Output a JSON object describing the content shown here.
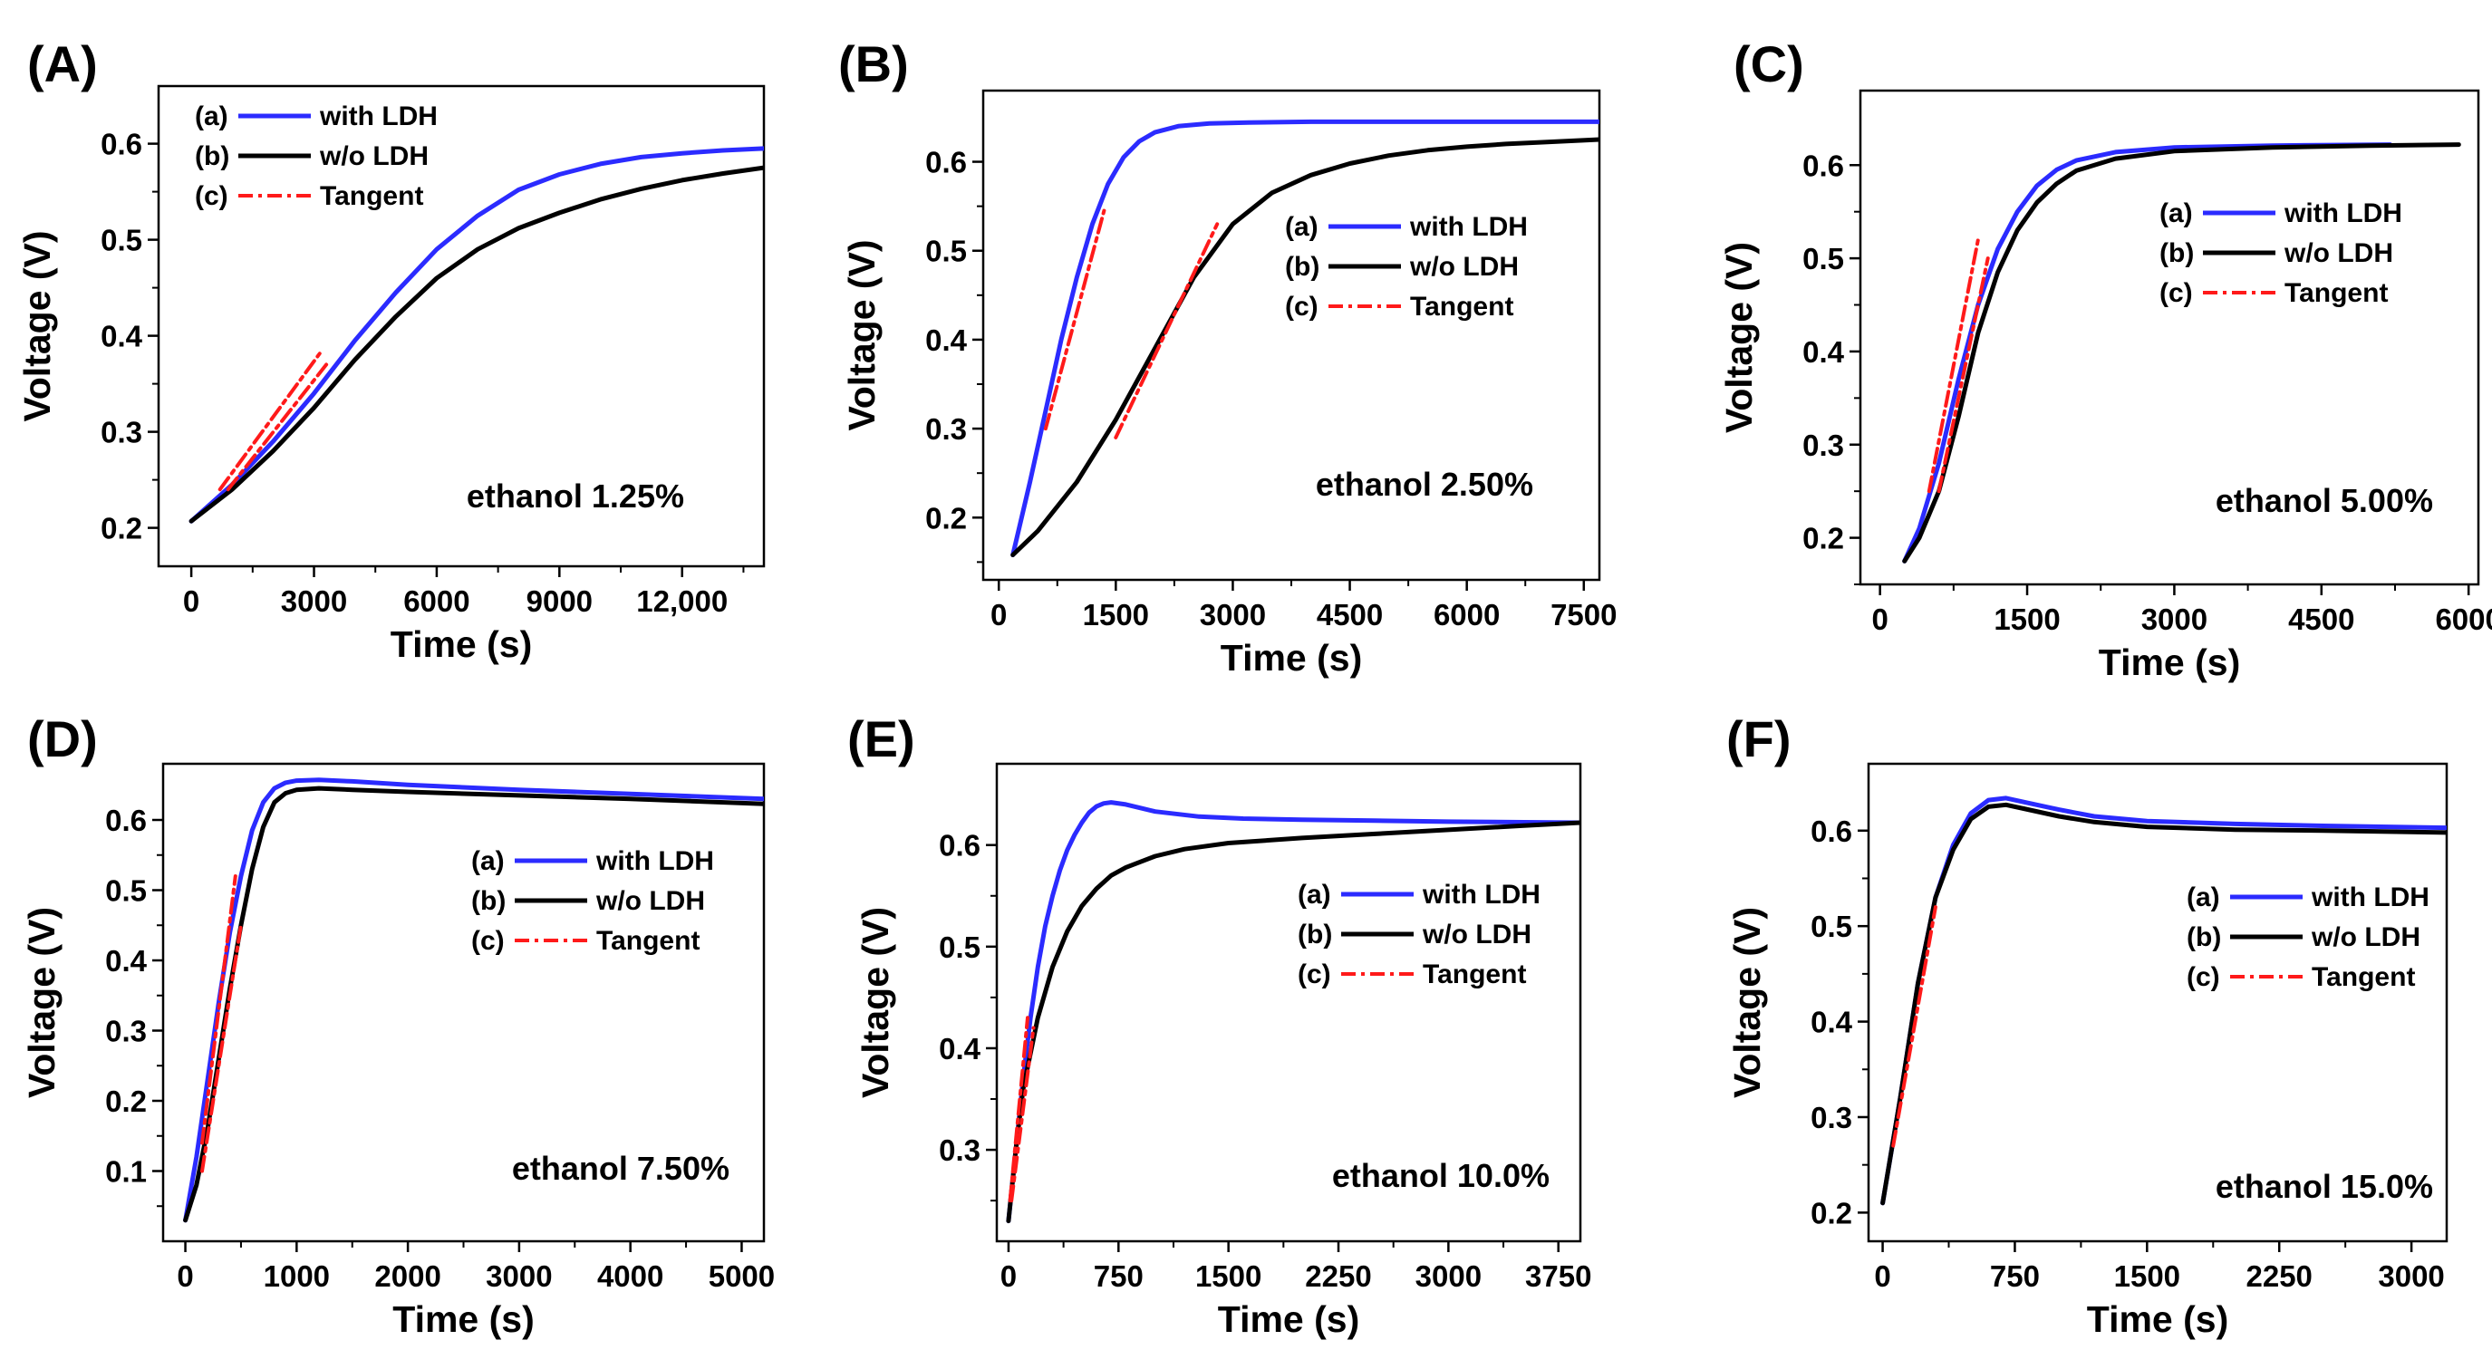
{
  "figure": {
    "colors": {
      "with_ldh": "#2b2bff",
      "wo_ldh": "#000000",
      "tangent": "#ff1a1a"
    },
    "legend_markers": [
      "(a)",
      "(b)",
      "(c)"
    ]
  },
  "chart_data": [
    {
      "type": "line",
      "panel_label": "(A)",
      "xlabel": "Time (s)",
      "ylabel": "Voltage (V)",
      "annotation": "ethanol 1.25%",
      "xlim": [
        -800,
        14000
      ],
      "ylim": [
        0.16,
        0.66
      ],
      "xticks": [
        0,
        3000,
        6000,
        9000,
        12000
      ],
      "xtick_labels": [
        "0",
        "3000",
        "6000",
        "9000",
        "12,000"
      ],
      "yticks": [
        0.2,
        0.3,
        0.4,
        0.5,
        0.6
      ],
      "ytick_labels": [
        "0.2",
        "0.3",
        "0.4",
        "0.5",
        "0.6"
      ],
      "legend": [
        "with LDH",
        "w/o LDH",
        "Tangent"
      ],
      "legend_position": "top-left",
      "series": [
        {
          "name": "with LDH",
          "x": [
            0,
            1000,
            2000,
            3000,
            4000,
            5000,
            6000,
            7000,
            8000,
            9000,
            10000,
            11000,
            12000,
            13000,
            14000
          ],
          "y": [
            0.207,
            0.245,
            0.29,
            0.34,
            0.395,
            0.445,
            0.49,
            0.525,
            0.552,
            0.568,
            0.579,
            0.586,
            0.59,
            0.593,
            0.595
          ]
        },
        {
          "name": "w/o LDH",
          "x": [
            0,
            1000,
            2000,
            3000,
            4000,
            5000,
            6000,
            7000,
            8000,
            9000,
            10000,
            11000,
            12000,
            13000,
            14000
          ],
          "y": [
            0.207,
            0.24,
            0.28,
            0.325,
            0.375,
            0.42,
            0.46,
            0.49,
            0.512,
            0.528,
            0.542,
            0.553,
            0.562,
            0.569,
            0.575
          ]
        },
        {
          "name": "Tangent",
          "x": [
            700,
            3200
          ],
          "y": [
            0.24,
            0.385
          ]
        },
        {
          "name": "Tangent",
          "x": [
            900,
            3300
          ],
          "y": [
            0.24,
            0.37
          ]
        }
      ]
    },
    {
      "type": "line",
      "panel_label": "(B)",
      "xlabel": "Time (s)",
      "ylabel": "Voltage (V)",
      "annotation": "ethanol 2.50%",
      "xlim": [
        -200,
        7700
      ],
      "ylim": [
        0.13,
        0.68
      ],
      "xticks": [
        0,
        1500,
        3000,
        4500,
        6000,
        7500
      ],
      "xtick_labels": [
        "0",
        "1500",
        "3000",
        "4500",
        "6000",
        "7500"
      ],
      "yticks": [
        0.2,
        0.3,
        0.4,
        0.5,
        0.6
      ],
      "ytick_labels": [
        "0.2",
        "0.3",
        "0.4",
        "0.5",
        "0.6"
      ],
      "legend": [
        "with LDH",
        "w/o LDH",
        "Tangent"
      ],
      "legend_position": "right",
      "series": [
        {
          "name": "with LDH",
          "x": [
            180,
            400,
            600,
            800,
            1000,
            1200,
            1400,
            1600,
            1800,
            2000,
            2300,
            2700,
            3200,
            4000,
            5000,
            6000,
            7700
          ],
          "y": [
            0.158,
            0.24,
            0.32,
            0.4,
            0.47,
            0.53,
            0.575,
            0.605,
            0.623,
            0.633,
            0.64,
            0.643,
            0.644,
            0.645,
            0.645,
            0.645,
            0.645
          ]
        },
        {
          "name": "w/o LDH",
          "x": [
            180,
            500,
            1000,
            1500,
            2000,
            2500,
            3000,
            3500,
            4000,
            4500,
            5000,
            5500,
            6000,
            6500,
            7000,
            7700
          ],
          "y": [
            0.158,
            0.185,
            0.24,
            0.31,
            0.39,
            0.47,
            0.53,
            0.565,
            0.585,
            0.598,
            0.607,
            0.613,
            0.617,
            0.62,
            0.622,
            0.625
          ]
        },
        {
          "name": "Tangent",
          "x": [
            600,
            1350
          ],
          "y": [
            0.3,
            0.545
          ]
        },
        {
          "name": "Tangent",
          "x": [
            1500,
            2800
          ],
          "y": [
            0.29,
            0.53
          ]
        }
      ]
    },
    {
      "type": "line",
      "panel_label": "(C)",
      "xlabel": "Time (s)",
      "ylabel": "Voltage (V)",
      "annotation": "ethanol 5.00%",
      "xlim": [
        -200,
        6100
      ],
      "ylim": [
        0.15,
        0.68
      ],
      "xticks": [
        0,
        1500,
        3000,
        4500,
        6000
      ],
      "xtick_labels": [
        "0",
        "1500",
        "3000",
        "4500",
        "6000"
      ],
      "yticks": [
        0.2,
        0.3,
        0.4,
        0.5,
        0.6
      ],
      "ytick_labels": [
        "0.2",
        "0.3",
        "0.4",
        "0.5",
        "0.6"
      ],
      "legend": [
        "with LDH",
        "w/o LDH",
        "Tangent"
      ],
      "legend_position": "right",
      "series": [
        {
          "name": "with LDH",
          "x": [
            250,
            400,
            600,
            800,
            1000,
            1200,
            1400,
            1600,
            1800,
            2000,
            2400,
            3000,
            4000,
            5200
          ],
          "y": [
            0.175,
            0.21,
            0.28,
            0.37,
            0.45,
            0.51,
            0.55,
            0.578,
            0.595,
            0.605,
            0.614,
            0.619,
            0.621,
            0.622
          ]
        },
        {
          "name": "w/o LDH",
          "x": [
            250,
            400,
            600,
            800,
            1000,
            1200,
            1400,
            1600,
            1800,
            2000,
            2400,
            3000,
            4000,
            5000,
            5900
          ],
          "y": [
            0.175,
            0.2,
            0.25,
            0.33,
            0.42,
            0.485,
            0.53,
            0.56,
            0.58,
            0.594,
            0.607,
            0.615,
            0.619,
            0.621,
            0.622
          ]
        },
        {
          "name": "Tangent",
          "x": [
            500,
            1000
          ],
          "y": [
            0.25,
            0.52
          ]
        },
        {
          "name": "Tangent",
          "x": [
            600,
            1100
          ],
          "y": [
            0.25,
            0.5
          ]
        }
      ]
    },
    {
      "type": "line",
      "panel_label": "(D)",
      "xlabel": "Time (s)",
      "ylabel": "Voltage (V)",
      "annotation": "ethanol 7.50%",
      "xlim": [
        -200,
        5200
      ],
      "ylim": [
        0.0,
        0.68
      ],
      "xticks": [
        0,
        1000,
        2000,
        3000,
        4000,
        5000
      ],
      "xtick_labels": [
        "0",
        "1000",
        "2000",
        "3000",
        "4000",
        "5000"
      ],
      "yticks": [
        0.1,
        0.2,
        0.3,
        0.4,
        0.5,
        0.6
      ],
      "ytick_labels": [
        "0.1",
        "0.2",
        "0.3",
        "0.4",
        "0.5",
        "0.6"
      ],
      "legend": [
        "with LDH",
        "w/o LDH",
        "Tangent"
      ],
      "legend_position": "right",
      "series": [
        {
          "name": "with LDH",
          "x": [
            0,
            100,
            200,
            300,
            400,
            500,
            600,
            700,
            800,
            900,
            1000,
            1200,
            1500,
            2000,
            3000,
            4000,
            5200
          ],
          "y": [
            0.03,
            0.12,
            0.23,
            0.34,
            0.44,
            0.52,
            0.585,
            0.625,
            0.645,
            0.653,
            0.656,
            0.657,
            0.655,
            0.65,
            0.643,
            0.637,
            0.63
          ]
        },
        {
          "name": "w/o LDH",
          "x": [
            0,
            100,
            200,
            300,
            400,
            500,
            600,
            700,
            800,
            900,
            1000,
            1200,
            1500,
            2000,
            3000,
            4000,
            5200
          ],
          "y": [
            0.03,
            0.08,
            0.16,
            0.26,
            0.36,
            0.45,
            0.53,
            0.59,
            0.625,
            0.638,
            0.643,
            0.645,
            0.643,
            0.64,
            0.635,
            0.63,
            0.623
          ]
        },
        {
          "name": "Tangent",
          "x": [
            150,
            450
          ],
          "y": [
            0.14,
            0.52
          ]
        },
        {
          "name": "Tangent",
          "x": [
            150,
            500
          ],
          "y": [
            0.1,
            0.45
          ]
        }
      ]
    },
    {
      "type": "line",
      "panel_label": "(E)",
      "xlabel": "Time (s)",
      "ylabel": "Voltage (V)",
      "annotation": "ethanol 10.0%",
      "xlim": [
        -80,
        3900
      ],
      "ylim": [
        0.21,
        0.68
      ],
      "xticks": [
        0,
        750,
        1500,
        2250,
        3000,
        3750
      ],
      "xtick_labels": [
        "0",
        "750",
        "1500",
        "2250",
        "3000",
        "3750"
      ],
      "yticks": [
        0.3,
        0.4,
        0.5,
        0.6
      ],
      "ytick_labels": [
        "0.3",
        "0.4",
        "0.5",
        "0.6"
      ],
      "legend": [
        "with LDH",
        "w/o LDH",
        "Tangent"
      ],
      "legend_position": "right",
      "series": [
        {
          "name": "with LDH",
          "x": [
            0,
            50,
            100,
            150,
            200,
            250,
            300,
            350,
            400,
            450,
            500,
            550,
            600,
            650,
            700,
            800,
            1000,
            1300,
            1600,
            2000,
            2500,
            3000,
            3900
          ],
          "y": [
            0.23,
            0.3,
            0.37,
            0.43,
            0.48,
            0.52,
            0.55,
            0.575,
            0.595,
            0.61,
            0.622,
            0.632,
            0.638,
            0.641,
            0.642,
            0.64,
            0.633,
            0.628,
            0.626,
            0.625,
            0.624,
            0.623,
            0.622
          ]
        },
        {
          "name": "w/o LDH",
          "x": [
            0,
            50,
            100,
            200,
            300,
            400,
            500,
            600,
            700,
            800,
            1000,
            1200,
            1500,
            2000,
            2500,
            3000,
            3500,
            3900
          ],
          "y": [
            0.23,
            0.3,
            0.36,
            0.43,
            0.48,
            0.515,
            0.54,
            0.557,
            0.57,
            0.578,
            0.589,
            0.596,
            0.602,
            0.607,
            0.611,
            0.615,
            0.619,
            0.622
          ]
        },
        {
          "name": "Tangent",
          "x": [
            10,
            130
          ],
          "y": [
            0.25,
            0.43
          ]
        },
        {
          "name": "Tangent",
          "x": [
            20,
            170
          ],
          "y": [
            0.25,
            0.42
          ]
        }
      ]
    },
    {
      "type": "line",
      "panel_label": "(F)",
      "xlabel": "Time (s)",
      "ylabel": "Voltage (V)",
      "annotation": "ethanol 15.0%",
      "xlim": [
        -80,
        3200
      ],
      "ylim": [
        0.17,
        0.67
      ],
      "xticks": [
        0,
        750,
        1500,
        2250,
        3000
      ],
      "xtick_labels": [
        "0",
        "750",
        "1500",
        "2250",
        "3000"
      ],
      "yticks": [
        0.2,
        0.3,
        0.4,
        0.5,
        0.6
      ],
      "ytick_labels": [
        "0.2",
        "0.3",
        "0.4",
        "0.5",
        "0.6"
      ],
      "legend": [
        "with LDH",
        "w/o LDH",
        "Tangent"
      ],
      "legend_position": "right",
      "series": [
        {
          "name": "with LDH",
          "x": [
            0,
            100,
            200,
            300,
            400,
            500,
            600,
            700,
            800,
            1000,
            1200,
            1500,
            2000,
            2500,
            3200
          ],
          "y": [
            0.21,
            0.32,
            0.44,
            0.53,
            0.585,
            0.618,
            0.632,
            0.634,
            0.63,
            0.622,
            0.615,
            0.61,
            0.607,
            0.605,
            0.603
          ]
        },
        {
          "name": "w/o LDH",
          "x": [
            0,
            100,
            200,
            300,
            400,
            500,
            600,
            700,
            800,
            1000,
            1200,
            1500,
            2000,
            2500,
            3200
          ],
          "y": [
            0.21,
            0.32,
            0.44,
            0.53,
            0.58,
            0.612,
            0.625,
            0.627,
            0.623,
            0.615,
            0.609,
            0.604,
            0.601,
            0.6,
            0.598
          ]
        },
        {
          "name": "Tangent",
          "x": [
            60,
            300
          ],
          "y": [
            0.27,
            0.52
          ]
        }
      ]
    }
  ]
}
